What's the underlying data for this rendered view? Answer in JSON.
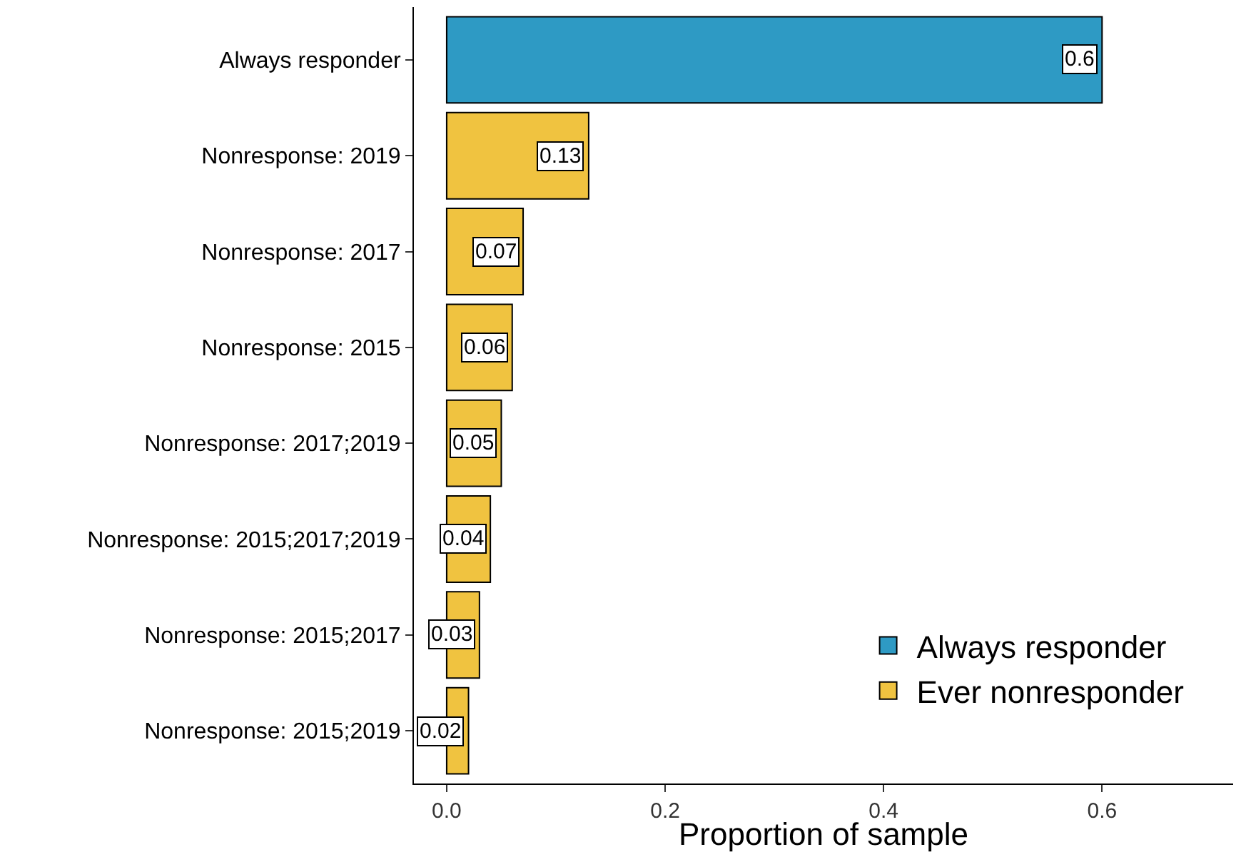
{
  "chart_data": {
    "type": "bar",
    "orientation": "horizontal",
    "xlabel": "Proportion of sample",
    "categories": [
      "Always responder",
      "Nonresponse: 2019",
      "Nonresponse: 2017",
      "Nonresponse: 2015",
      "Nonresponse: 2017;2019",
      "Nonresponse: 2015;2017;2019",
      "Nonresponse: 2015;2017",
      "Nonresponse: 2015;2019"
    ],
    "series": [
      {
        "name": "Always responder",
        "color": "#2e9ac4",
        "values": [
          0.6,
          null,
          null,
          null,
          null,
          null,
          null,
          null
        ]
      },
      {
        "name": "Ever nonresponder",
        "color": "#f0c340",
        "values": [
          null,
          0.13,
          0.07,
          0.06,
          0.05,
          0.04,
          0.03,
          0.02
        ]
      }
    ],
    "xlim": [
      -0.03,
      0.72
    ],
    "xticks": [
      {
        "value": 0,
        "label": "0.0"
      },
      0.2,
      0.4,
      0.6
    ],
    "data_labels": true,
    "grid": false,
    "legend": "bottom right"
  }
}
